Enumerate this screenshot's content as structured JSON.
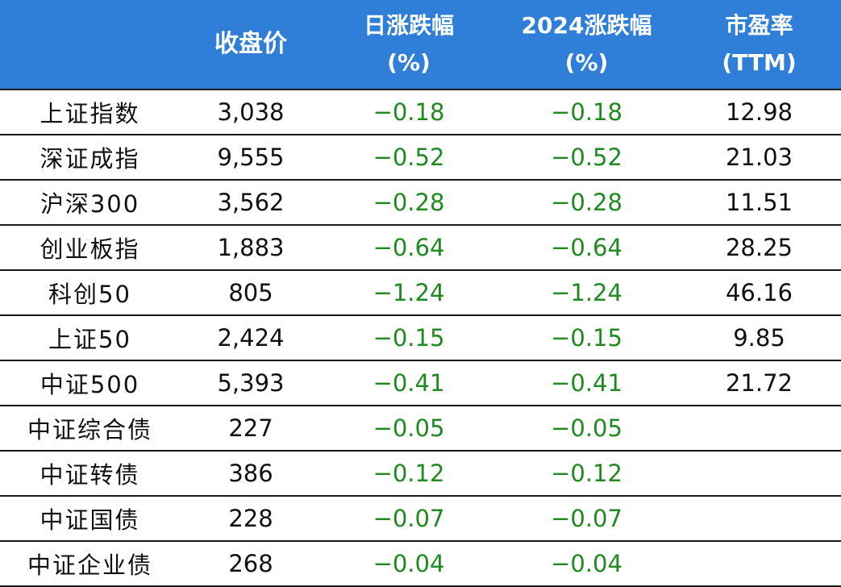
{
  "table": {
    "headers": {
      "index": "",
      "close": "收盘价",
      "daily_change": [
        "日涨跌幅",
        "(%)"
      ],
      "ytd_change": [
        "2024涨跌幅",
        "(%)"
      ],
      "pe": [
        "市盈率",
        "(TTM)"
      ]
    },
    "rows": [
      {
        "name": "上证指数",
        "close": "3,038",
        "daily": "−0.18",
        "ytd": "−0.18",
        "pe": "12.98"
      },
      {
        "name": "深证成指",
        "close": "9,555",
        "daily": "−0.52",
        "ytd": "−0.52",
        "pe": "21.03"
      },
      {
        "name": "沪深300",
        "close": "3,562",
        "daily": "−0.28",
        "ytd": "−0.28",
        "pe": "11.51"
      },
      {
        "name": "创业板指",
        "close": "1,883",
        "daily": "−0.64",
        "ytd": "−0.64",
        "pe": "28.25"
      },
      {
        "name": "科创50",
        "close": "805",
        "daily": "−1.24",
        "ytd": "−1.24",
        "pe": "46.16"
      },
      {
        "name": "上证50",
        "close": "2,424",
        "daily": "−0.15",
        "ytd": "−0.15",
        "pe": "9.85"
      },
      {
        "name": "中证500",
        "close": "5,393",
        "daily": "−0.41",
        "ytd": "−0.41",
        "pe": "21.72"
      },
      {
        "name": "中证综合债",
        "close": "227",
        "daily": "−0.05",
        "ytd": "−0.05",
        "pe": ""
      },
      {
        "name": "中证转债",
        "close": "386",
        "daily": "−0.12",
        "ytd": "−0.12",
        "pe": ""
      },
      {
        "name": "中证国债",
        "close": "228",
        "daily": "−0.07",
        "ytd": "−0.07",
        "pe": ""
      },
      {
        "name": "中证企业债",
        "close": "268",
        "daily": "−0.04",
        "ytd": "−0.04",
        "pe": ""
      }
    ]
  },
  "colors": {
    "header_bg": "#2f7ed8",
    "header_text": "#ffffff",
    "negative": "#1f8a1f",
    "text": "#111111"
  }
}
